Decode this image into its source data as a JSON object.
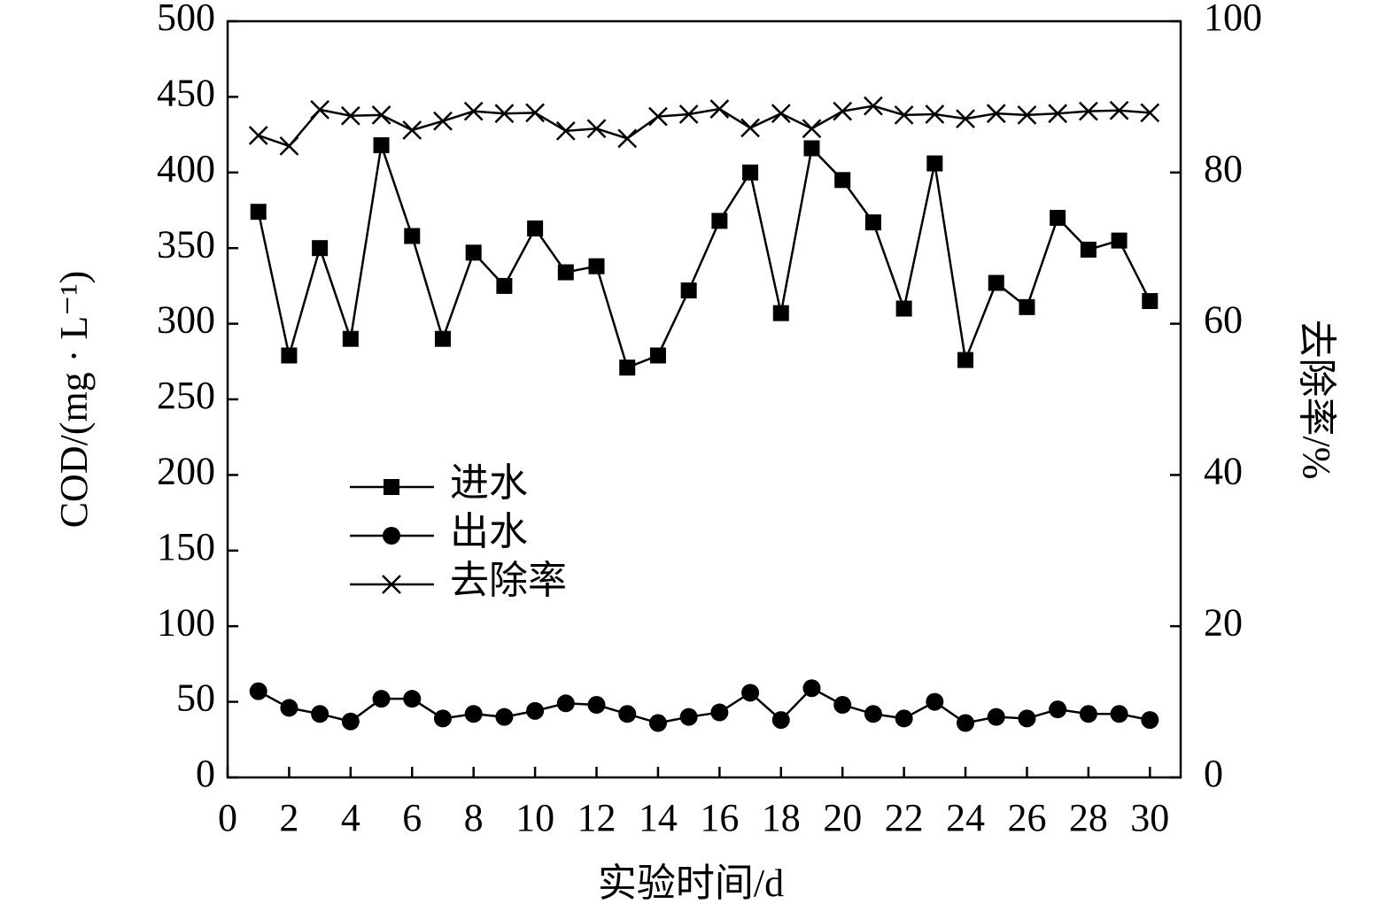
{
  "chart_data": {
    "type": "line",
    "x_label": "实验时间/d",
    "y_label": "COD/(mg · L⁻¹)",
    "y2_label": "去除率/%",
    "x": [
      1,
      2,
      3,
      4,
      5,
      6,
      7,
      8,
      9,
      10,
      11,
      12,
      13,
      14,
      15,
      16,
      17,
      18,
      19,
      20,
      21,
      22,
      23,
      24,
      25,
      26,
      27,
      28,
      29,
      30
    ],
    "xlim": [
      0,
      31
    ],
    "xticks": [
      0,
      2,
      4,
      6,
      8,
      10,
      12,
      14,
      16,
      18,
      20,
      22,
      24,
      26,
      28,
      30
    ],
    "ylim": [
      0,
      500
    ],
    "yticks": [
      0,
      50,
      100,
      150,
      200,
      250,
      300,
      350,
      400,
      450,
      500
    ],
    "y2lim": [
      0,
      100
    ],
    "y2ticks": [
      0,
      20,
      40,
      60,
      80,
      100
    ],
    "series": [
      {
        "name": "进水",
        "color": "#000000",
        "marker": "square",
        "values": [
          374,
          279,
          350,
          290,
          418,
          358,
          290,
          347,
          325,
          363,
          334,
          338,
          271,
          279,
          322,
          368,
          400,
          307,
          416,
          395,
          367,
          310,
          406,
          276,
          327,
          311,
          370,
          349,
          355,
          315
        ]
      },
      {
        "name": "出水",
        "color": "#000000",
        "marker": "circle",
        "values": [
          57,
          46,
          42,
          37,
          52,
          52,
          39,
          42,
          40,
          44,
          49,
          48,
          42,
          36,
          40,
          43,
          56,
          38,
          59,
          48,
          42,
          39,
          50,
          36,
          40,
          39,
          45,
          42,
          42,
          38
        ]
      },
      {
        "name": "去除率",
        "color": "#000000",
        "marker": "x",
        "axis": "y2",
        "values": [
          84.9,
          83.5,
          88.3,
          87.5,
          87.6,
          85.6,
          86.8,
          88.1,
          87.8,
          87.9,
          85.5,
          85.8,
          84.5,
          87.4,
          87.7,
          88.4,
          85.9,
          87.8,
          85.8,
          88.1,
          88.8,
          87.6,
          87.7,
          87.1,
          87.8,
          87.6,
          87.8,
          88.1,
          88.2,
          87.9
        ]
      }
    ]
  }
}
